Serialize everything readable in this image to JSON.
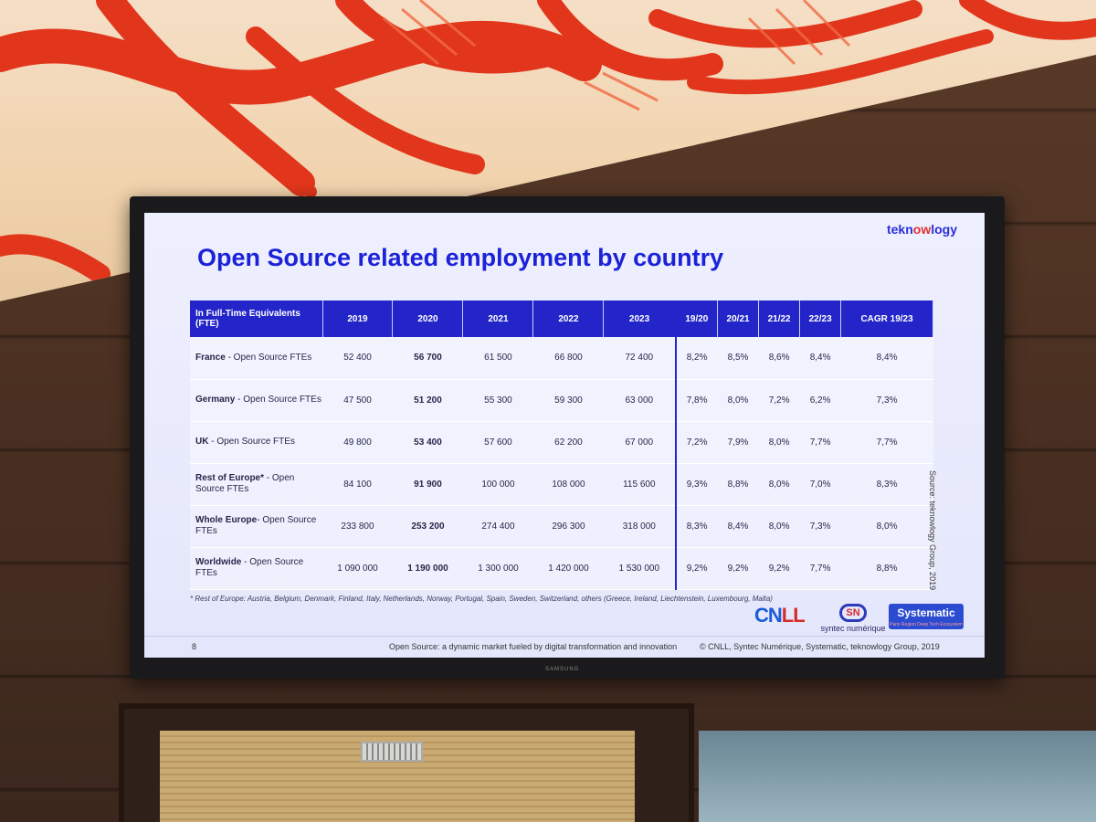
{
  "slide": {
    "title": "Open Source related employment by country",
    "brand": {
      "part1": "tekn",
      "part2": "ow",
      "part3": "logy"
    },
    "page_number": "8",
    "footer_center": "Open Source: a dynamic market fueled by digital transformation and innovation",
    "footer_right": "© CNLL, Syntec Numérique, Systematic, teknowlogy Group, 2019",
    "source_note": "Source: teknowlogy Group, 2019",
    "footnote": "* Rest of Europe: Austria, Belgium, Denmark, Finland, Italy, Netherlands, Norway, Portugal, Spain, Sweden, Switzerland, others (Greece, Ireland, Liechtenstein, Luxembourg, Malta)"
  },
  "logos": {
    "cnll": {
      "part1": "CN",
      "part2": "LL"
    },
    "syntec": {
      "mark": "SN",
      "name": "syntec numérique"
    },
    "systematic": {
      "name": "Systematic",
      "tagline": "Paris Region Deep Tech Ecosystem"
    }
  },
  "tv": {
    "brand": "SAMSUNG"
  },
  "table": {
    "header_label": "In Full-Time Equivalents (FTE)",
    "columns": [
      "2019",
      "2020",
      "2021",
      "2022",
      "2023",
      "19/20",
      "20/21",
      "21/22",
      "22/23",
      "CAGR 19/23"
    ],
    "rows": [
      {
        "country": "France",
        "suffix": " - Open Source FTEs",
        "values": [
          "52 400",
          "56 700",
          "61 500",
          "66 800",
          "72 400",
          "8,2%",
          "8,5%",
          "8,6%",
          "8,4%",
          "8,4%"
        ]
      },
      {
        "country": "Germany",
        "suffix": " - Open Source FTEs",
        "values": [
          "47 500",
          "51 200",
          "55 300",
          "59 300",
          "63 000",
          "7,8%",
          "8,0%",
          "7,2%",
          "6,2%",
          "7,3%"
        ]
      },
      {
        "country": "UK",
        "suffix": " - Open Source FTEs",
        "values": [
          "49 800",
          "53 400",
          "57 600",
          "62 200",
          "67 000",
          "7,2%",
          "7,9%",
          "8,0%",
          "7,7%",
          "7,7%"
        ]
      },
      {
        "country": "Rest of Europe*",
        "suffix": " - Open Source FTEs",
        "values": [
          "84 100",
          "91 900",
          "100 000",
          "108 000",
          "115 600",
          "9,3%",
          "8,8%",
          "8,0%",
          "7,0%",
          "8,3%"
        ]
      },
      {
        "country": "Whole Europe",
        "suffix": "- Open Source FTEs",
        "values": [
          "233 800",
          "253 200",
          "274 400",
          "296 300",
          "318 000",
          "8,3%",
          "8,4%",
          "8,0%",
          "7,3%",
          "8,0%"
        ]
      },
      {
        "country": "Worldwide",
        "suffix": " - Open Source FTEs",
        "values": [
          "1 090 000",
          "1 190 000",
          "1 300 000",
          "1 420 000",
          "1 530 000",
          "9,2%",
          "9,2%",
          "9,2%",
          "7,7%",
          "8,8%"
        ]
      }
    ]
  }
}
